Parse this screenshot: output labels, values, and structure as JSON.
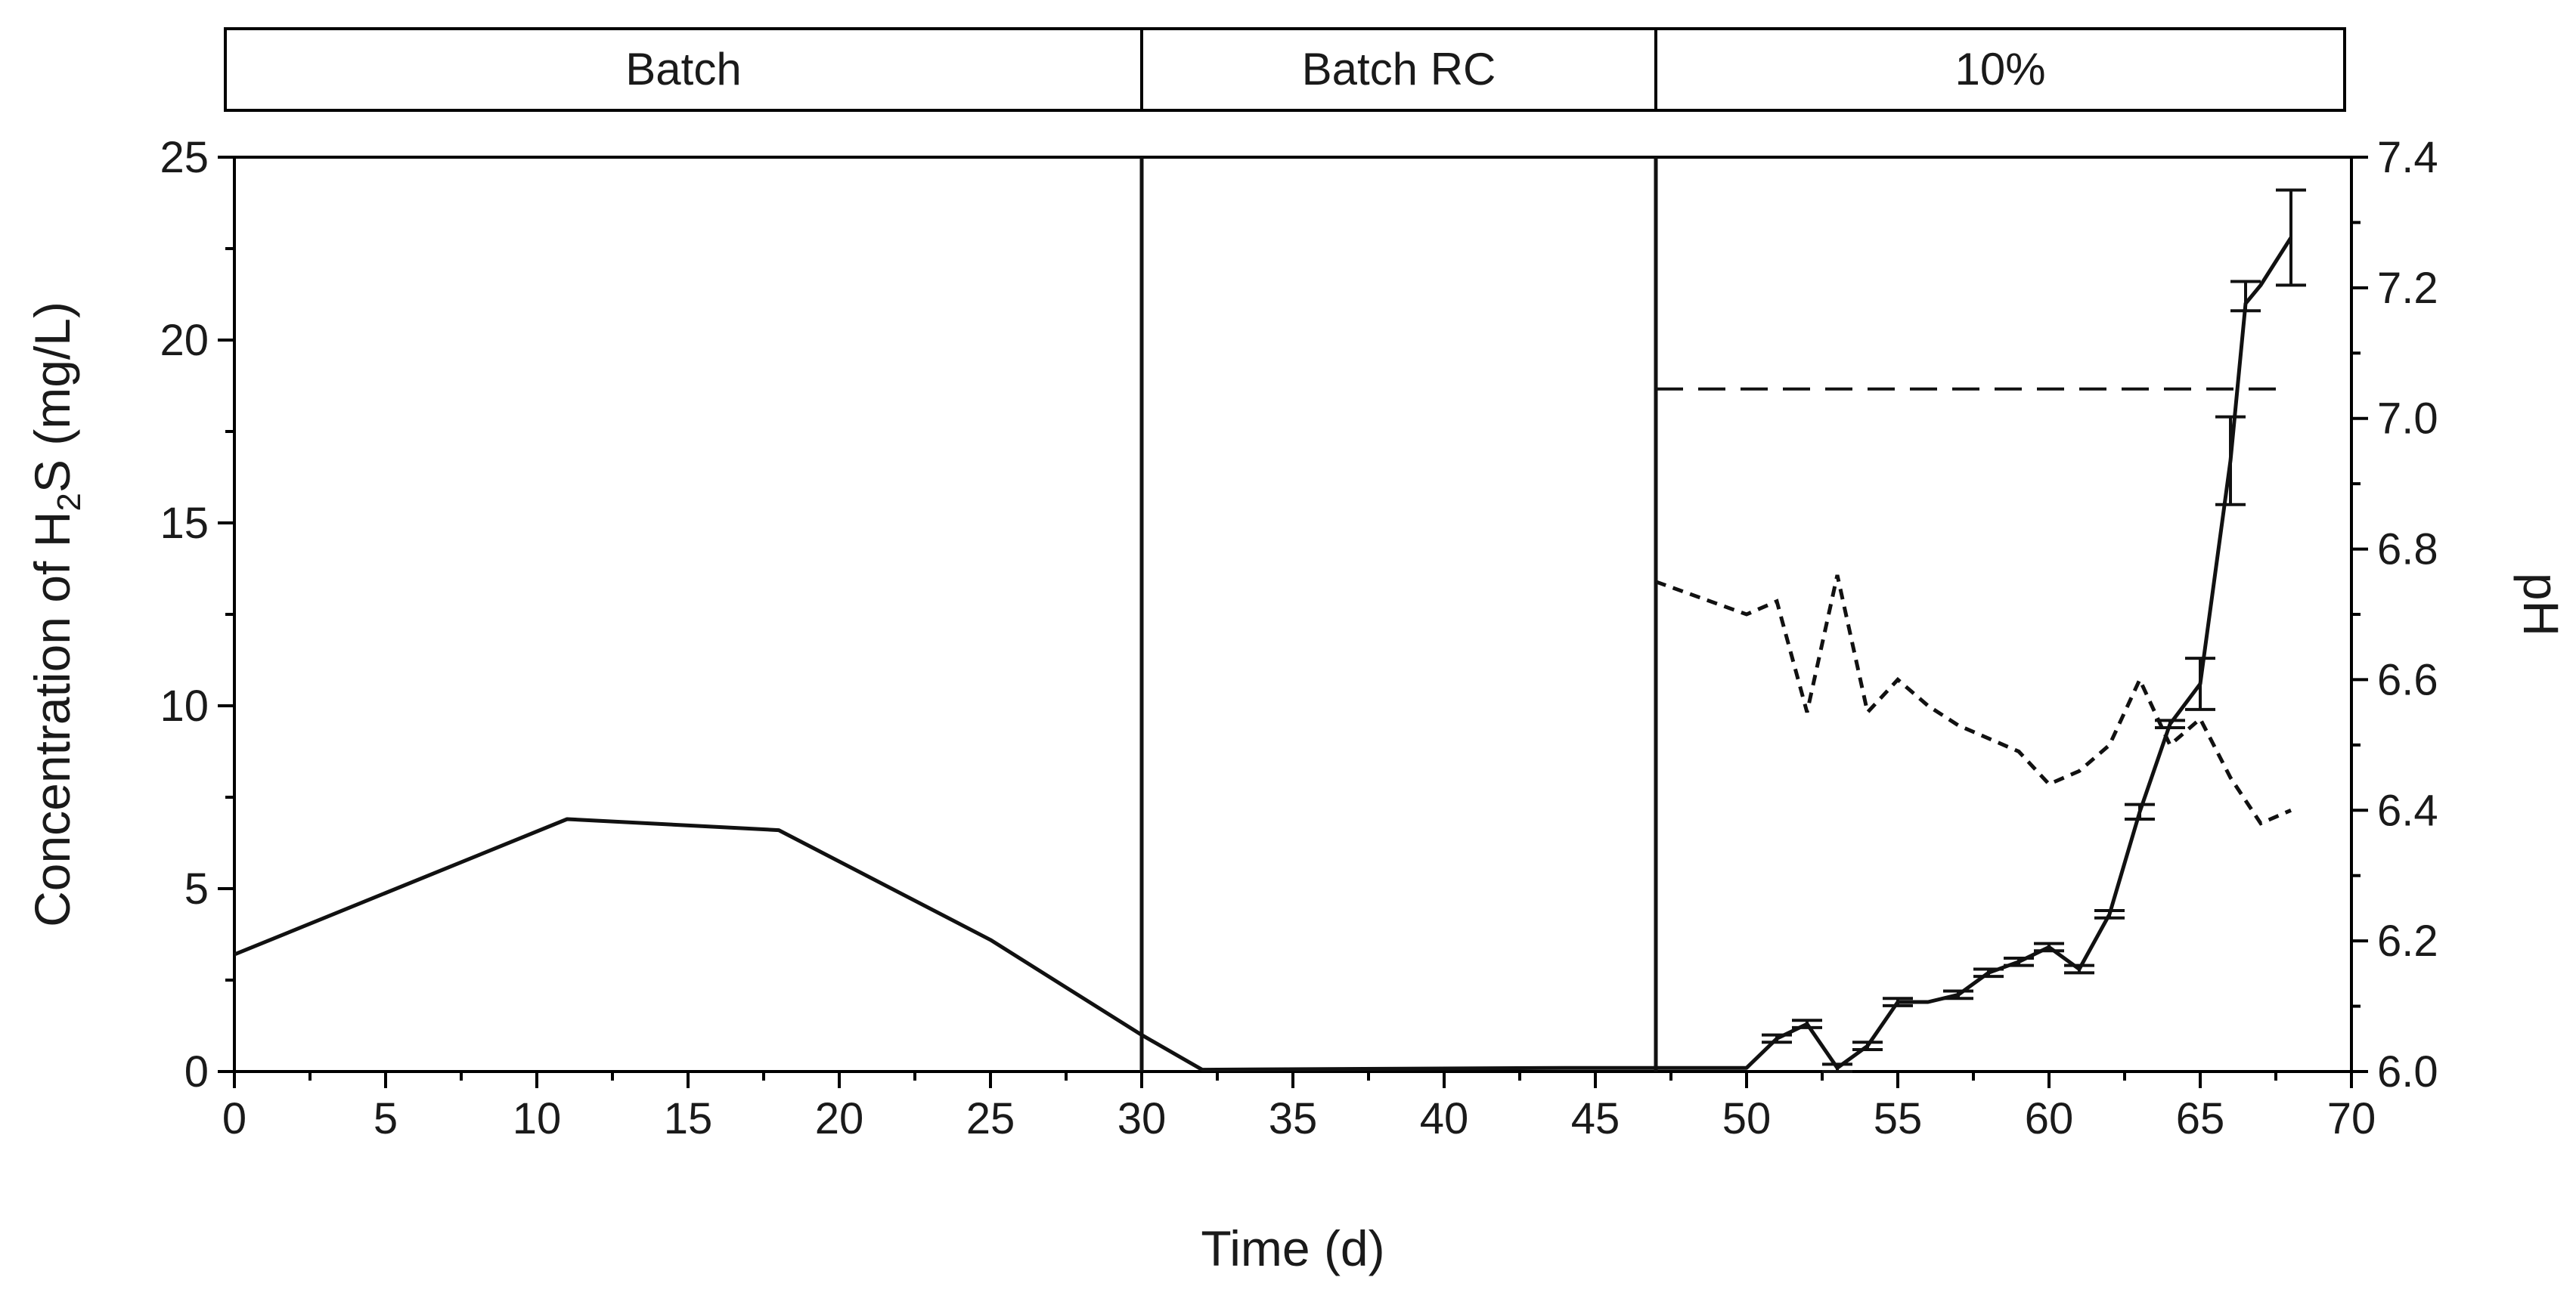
{
  "chart_data": {
    "type": "line",
    "x_axis": {
      "label": "Time (d)",
      "range": [
        0,
        70
      ],
      "ticks": [
        0,
        5,
        10,
        15,
        20,
        25,
        30,
        35,
        40,
        45,
        50,
        55,
        60,
        65,
        70
      ]
    },
    "y_axis_left": {
      "label_prefix": "Concentration of  H",
      "label_sub": "2",
      "label_suffix": "S (mg/L)",
      "range": [
        0,
        25
      ],
      "ticks": [
        0,
        5,
        10,
        15,
        20,
        25
      ]
    },
    "y_axis_right": {
      "label": "pH",
      "range": [
        6.0,
        7.4
      ],
      "ticks": [
        "6.0",
        "6.2",
        "6.4",
        "6.6",
        "6.8",
        "7.0",
        "7.2",
        "7.4"
      ]
    },
    "phases": [
      {
        "label": "Batch",
        "start": 0,
        "end": 30
      },
      {
        "label": "Batch RC",
        "start": 30,
        "end": 47
      },
      {
        "label": "10%",
        "start": 47,
        "end": 70
      }
    ],
    "phase_dividers": [
      30,
      47
    ],
    "series": [
      {
        "name": "H2S concentration",
        "axis": "left",
        "style": "solid",
        "x": [
          0,
          11,
          18,
          25,
          30,
          32,
          44,
          50,
          51,
          52,
          53,
          54,
          55,
          56,
          57,
          58,
          59,
          60,
          61,
          62,
          63,
          64,
          65,
          66,
          66.5,
          67,
          68
        ],
        "y": [
          3.2,
          6.9,
          6.6,
          3.6,
          1.0,
          0.05,
          0.1,
          0.1,
          0.9,
          1.3,
          0.1,
          0.7,
          1.9,
          1.9,
          2.1,
          2.7,
          3.0,
          3.4,
          2.8,
          4.3,
          7.1,
          9.5,
          10.6,
          16.7,
          21.0,
          21.5,
          22.8
        ],
        "error_bars": [
          {
            "x": 51,
            "lo": 0.8,
            "hi": 1.0
          },
          {
            "x": 52,
            "lo": 1.2,
            "hi": 1.4
          },
          {
            "x": 53,
            "lo": 0.0,
            "hi": 0.2
          },
          {
            "x": 54,
            "lo": 0.6,
            "hi": 0.8
          },
          {
            "x": 55,
            "lo": 1.8,
            "hi": 2.0
          },
          {
            "x": 57,
            "lo": 2.0,
            "hi": 2.2
          },
          {
            "x": 58,
            "lo": 2.6,
            "hi": 2.8
          },
          {
            "x": 59,
            "lo": 2.9,
            "hi": 3.1
          },
          {
            "x": 60,
            "lo": 3.3,
            "hi": 3.5
          },
          {
            "x": 61,
            "lo": 2.7,
            "hi": 2.9
          },
          {
            "x": 62,
            "lo": 4.2,
            "hi": 4.4
          },
          {
            "x": 63,
            "lo": 6.9,
            "hi": 7.3
          },
          {
            "x": 64,
            "lo": 9.4,
            "hi": 9.6
          },
          {
            "x": 65,
            "lo": 9.9,
            "hi": 11.3
          },
          {
            "x": 66,
            "lo": 15.5,
            "hi": 17.9
          },
          {
            "x": 66.5,
            "lo": 20.8,
            "hi": 21.6
          },
          {
            "x": 68,
            "lo": 21.5,
            "hi": 24.1
          }
        ]
      },
      {
        "name": "pH",
        "axis": "right",
        "style": "dotted",
        "x": [
          47,
          50,
          51,
          52,
          53,
          54,
          55,
          56,
          57,
          58,
          59,
          60,
          61,
          62,
          63,
          64,
          65,
          66,
          67,
          68
        ],
        "y": [
          6.75,
          6.7,
          6.72,
          6.55,
          6.76,
          6.55,
          6.6,
          6.56,
          6.53,
          6.51,
          6.49,
          6.44,
          6.46,
          6.5,
          6.6,
          6.5,
          6.54,
          6.45,
          6.38,
          6.4
        ]
      },
      {
        "name": "pH reference",
        "axis": "right",
        "style": "dashed",
        "x": [
          47,
          68
        ],
        "y": [
          7.045,
          7.045
        ]
      }
    ]
  }
}
